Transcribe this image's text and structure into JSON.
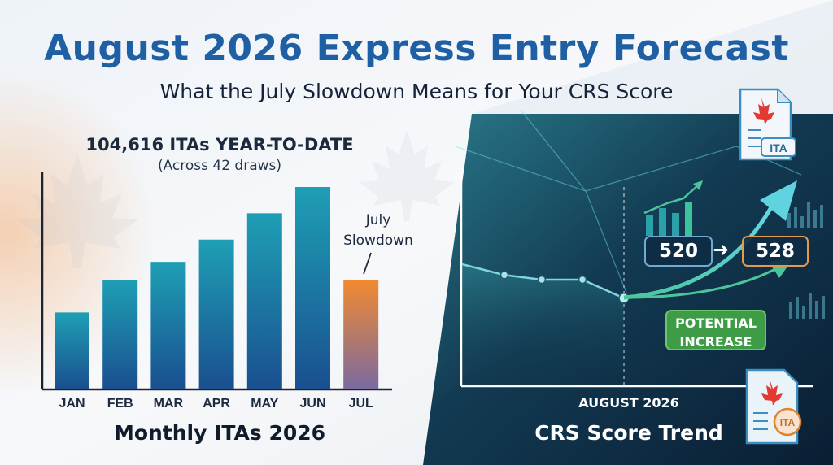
{
  "header": {
    "title": "August 2026 Express Entry Forecast",
    "subtitle": "What the July Slowdown Means for Your CRS Score"
  },
  "left_panel": {
    "ytd_total": "104,616 ITAs YEAR-TO-DATE",
    "draws_note": "(Across 42 draws)",
    "annotation_line1": "July",
    "annotation_line2": "Slowdown",
    "caption": "Monthly ITAs 2026"
  },
  "right_panel": {
    "caption": "CRS Score Trend",
    "month_label": "AUGUST 2026",
    "score_from": "520",
    "score_to": "528",
    "badge_line1": "POTENTIAL",
    "badge_line2": "INCREASE",
    "doc_label": "ITA",
    "stamp_label": "ITA"
  },
  "colors": {
    "title_blue": "#1f5fa4",
    "bar_teal": "#1b8fb0",
    "bar_highlight": "#f08a36",
    "trend_line": "#7fd6dc",
    "growth_arrow": "#4fc08a",
    "badge_green": "#3d9c45",
    "score_to_border": "#e39a4c"
  },
  "chart_data": [
    {
      "type": "bar",
      "title": "Monthly ITAs 2026",
      "categories": [
        "JAN",
        "FEB",
        "MAR",
        "APR",
        "MAY",
        "JUN",
        "JUL"
      ],
      "values": [
        0.38,
        0.54,
        0.63,
        0.74,
        0.87,
        1.0,
        0.54
      ],
      "value_scale": "relative to June",
      "highlight": "JUL",
      "axis_labels_shown": false,
      "grid": false
    },
    {
      "type": "line",
      "title": "CRS Score Trend",
      "x_label": "AUGUST 2026",
      "axis_labels_shown": false,
      "grid": false,
      "series": [
        {
          "name": "",
          "values": [
            0.0,
            0.07,
            0.1,
            0.1,
            0.22
          ]
        }
      ],
      "projection": {
        "from": 520,
        "to": 528,
        "label": "POTENTIAL INCREASE"
      }
    }
  ]
}
